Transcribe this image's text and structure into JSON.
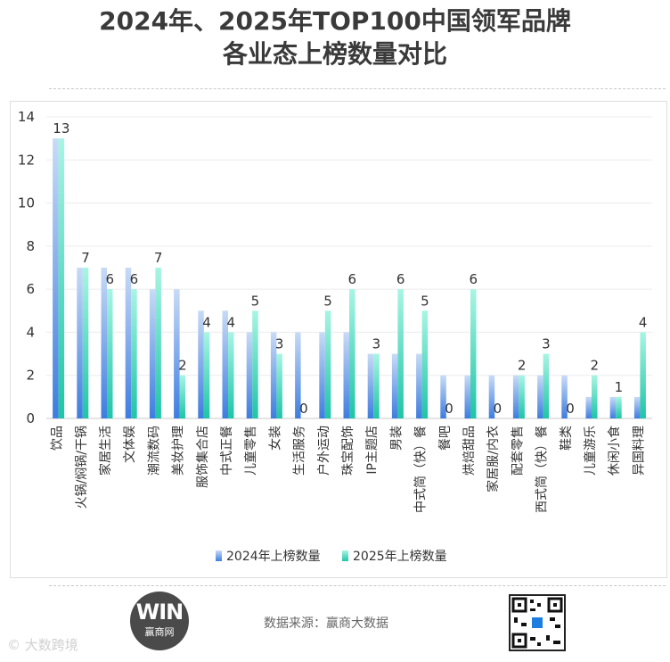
{
  "header": {
    "title_line1": "2024年、2025年TOP100中国领军品牌",
    "title_line2": "各业态上榜数量对比"
  },
  "chart_data": {
    "type": "bar",
    "ylim": [
      0,
      14
    ],
    "yticks": [
      0,
      2,
      4,
      6,
      8,
      10,
      12,
      14
    ],
    "grid": true,
    "legend_position": "bottom",
    "categories": [
      "饮品",
      "火锅/焖锅/干锅",
      "家居生活",
      "文体娱",
      "潮流数码",
      "美妆护理",
      "服饰集合店",
      "中式正餐",
      "儿童零售",
      "女装",
      "生活服务",
      "户外运动",
      "珠宝配饰",
      "IP主题店",
      "男装",
      "中式简（快）餐",
      "餐吧",
      "烘焙甜品",
      "家居服/内衣",
      "配套零售",
      "西式简（快）餐",
      "鞋类",
      "儿童游乐",
      "休闲小食",
      "异国料理"
    ],
    "series": [
      {
        "name": "2024年上榜数量",
        "values": [
          13,
          7,
          7,
          7,
          6,
          6,
          5,
          5,
          4,
          4,
          4,
          4,
          4,
          3,
          3,
          3,
          2,
          2,
          2,
          2,
          2,
          2,
          1,
          1,
          1
        ],
        "color": "#8fb4ea"
      },
      {
        "name": "2025年上榜数量",
        "values": [
          13,
          7,
          6,
          6,
          7,
          2,
          4,
          4,
          5,
          3,
          0,
          5,
          6,
          3,
          6,
          5,
          0,
          6,
          0,
          2,
          3,
          0,
          2,
          1,
          4
        ],
        "color": "#4ee3c4"
      }
    ],
    "data_labels_series": "2025年上榜数量"
  },
  "footer": {
    "source": "数据来源：赢商大数据",
    "logo_main": "WIN",
    "logo_sub": "赢商网",
    "watermark": "© 大数跨境"
  }
}
